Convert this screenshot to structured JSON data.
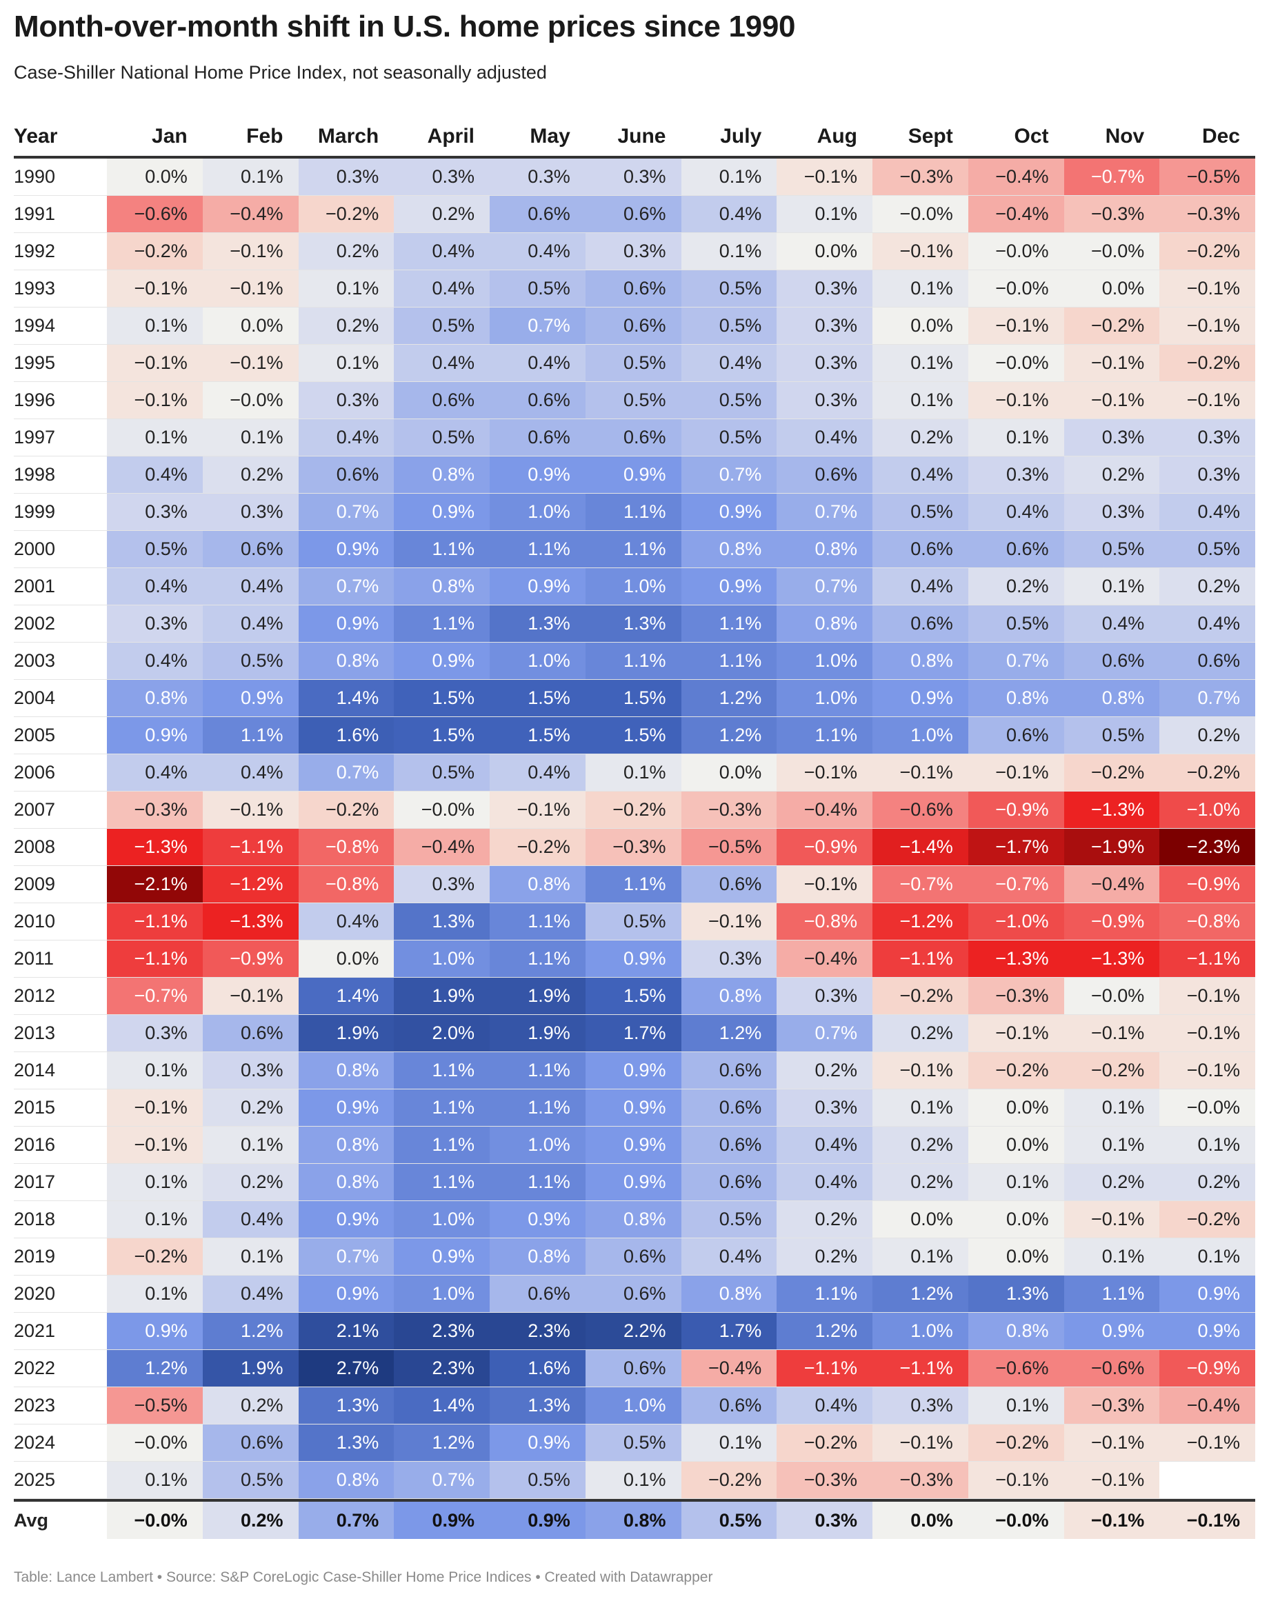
{
  "title": "Month-over-month shift in U.S. home prices since 1990",
  "subtitle": "Case-Shiller National Home Price Index, not seasonally adjusted",
  "footer": "Table: Lance Lambert • Source: S&P CoreLogic Case-Shiller Home Price Indices • Created with Datawrapper",
  "colors": {
    "negative_max": "#7f0000",
    "positive_max": "#1f3f7f",
    "neutral": "#f1f1ee"
  },
  "chart_data": {
    "type": "heatmap",
    "columns": [
      "Year",
      "Jan",
      "Feb",
      "March",
      "April",
      "May",
      "June",
      "July",
      "Aug",
      "Sept",
      "Oct",
      "Nov",
      "Dec"
    ],
    "unit": "%",
    "rows": [
      {
        "year": "1990",
        "values": [
          "0.0%",
          "0.1%",
          "0.3%",
          "0.3%",
          "0.3%",
          "0.3%",
          "0.1%",
          "−0.1%",
          "−0.3%",
          "−0.4%",
          "−0.7%",
          "−0.5%"
        ]
      },
      {
        "year": "1991",
        "values": [
          "−0.6%",
          "−0.4%",
          "−0.2%",
          "0.2%",
          "0.6%",
          "0.6%",
          "0.4%",
          "0.1%",
          "−0.0%",
          "−0.4%",
          "−0.3%",
          "−0.3%"
        ]
      },
      {
        "year": "1992",
        "values": [
          "−0.2%",
          "−0.1%",
          "0.2%",
          "0.4%",
          "0.4%",
          "0.3%",
          "0.1%",
          "0.0%",
          "−0.1%",
          "−0.0%",
          "−0.0%",
          "−0.2%"
        ]
      },
      {
        "year": "1993",
        "values": [
          "−0.1%",
          "−0.1%",
          "0.1%",
          "0.4%",
          "0.5%",
          "0.6%",
          "0.5%",
          "0.3%",
          "0.1%",
          "−0.0%",
          "0.0%",
          "−0.1%"
        ]
      },
      {
        "year": "1994",
        "values": [
          "0.1%",
          "0.0%",
          "0.2%",
          "0.5%",
          "0.7%",
          "0.6%",
          "0.5%",
          "0.3%",
          "0.0%",
          "−0.1%",
          "−0.2%",
          "−0.1%"
        ]
      },
      {
        "year": "1995",
        "values": [
          "−0.1%",
          "−0.1%",
          "0.1%",
          "0.4%",
          "0.4%",
          "0.5%",
          "0.4%",
          "0.3%",
          "0.1%",
          "−0.0%",
          "−0.1%",
          "−0.2%"
        ]
      },
      {
        "year": "1996",
        "values": [
          "−0.1%",
          "−0.0%",
          "0.3%",
          "0.6%",
          "0.6%",
          "0.5%",
          "0.5%",
          "0.3%",
          "0.1%",
          "−0.1%",
          "−0.1%",
          "−0.1%"
        ]
      },
      {
        "year": "1997",
        "values": [
          "0.1%",
          "0.1%",
          "0.4%",
          "0.5%",
          "0.6%",
          "0.6%",
          "0.5%",
          "0.4%",
          "0.2%",
          "0.1%",
          "0.3%",
          "0.3%"
        ]
      },
      {
        "year": "1998",
        "values": [
          "0.4%",
          "0.2%",
          "0.6%",
          "0.8%",
          "0.9%",
          "0.9%",
          "0.7%",
          "0.6%",
          "0.4%",
          "0.3%",
          "0.2%",
          "0.3%"
        ]
      },
      {
        "year": "1999",
        "values": [
          "0.3%",
          "0.3%",
          "0.7%",
          "0.9%",
          "1.0%",
          "1.1%",
          "0.9%",
          "0.7%",
          "0.5%",
          "0.4%",
          "0.3%",
          "0.4%"
        ]
      },
      {
        "year": "2000",
        "values": [
          "0.5%",
          "0.6%",
          "0.9%",
          "1.1%",
          "1.1%",
          "1.1%",
          "0.8%",
          "0.8%",
          "0.6%",
          "0.6%",
          "0.5%",
          "0.5%"
        ]
      },
      {
        "year": "2001",
        "values": [
          "0.4%",
          "0.4%",
          "0.7%",
          "0.8%",
          "0.9%",
          "1.0%",
          "0.9%",
          "0.7%",
          "0.4%",
          "0.2%",
          "0.1%",
          "0.2%"
        ]
      },
      {
        "year": "2002",
        "values": [
          "0.3%",
          "0.4%",
          "0.9%",
          "1.1%",
          "1.3%",
          "1.3%",
          "1.1%",
          "0.8%",
          "0.6%",
          "0.5%",
          "0.4%",
          "0.4%"
        ]
      },
      {
        "year": "2003",
        "values": [
          "0.4%",
          "0.5%",
          "0.8%",
          "0.9%",
          "1.0%",
          "1.1%",
          "1.1%",
          "1.0%",
          "0.8%",
          "0.7%",
          "0.6%",
          "0.6%"
        ]
      },
      {
        "year": "2004",
        "values": [
          "0.8%",
          "0.9%",
          "1.4%",
          "1.5%",
          "1.5%",
          "1.5%",
          "1.2%",
          "1.0%",
          "0.9%",
          "0.8%",
          "0.8%",
          "0.7%"
        ]
      },
      {
        "year": "2005",
        "values": [
          "0.9%",
          "1.1%",
          "1.6%",
          "1.5%",
          "1.5%",
          "1.5%",
          "1.2%",
          "1.1%",
          "1.0%",
          "0.6%",
          "0.5%",
          "0.2%"
        ]
      },
      {
        "year": "2006",
        "values": [
          "0.4%",
          "0.4%",
          "0.7%",
          "0.5%",
          "0.4%",
          "0.1%",
          "0.0%",
          "−0.1%",
          "−0.1%",
          "−0.1%",
          "−0.2%",
          "−0.2%"
        ]
      },
      {
        "year": "2007",
        "values": [
          "−0.3%",
          "−0.1%",
          "−0.2%",
          "−0.0%",
          "−0.1%",
          "−0.2%",
          "−0.3%",
          "−0.4%",
          "−0.6%",
          "−0.9%",
          "−1.3%",
          "−1.0%"
        ]
      },
      {
        "year": "2008",
        "values": [
          "−1.3%",
          "−1.1%",
          "−0.8%",
          "−0.4%",
          "−0.2%",
          "−0.3%",
          "−0.5%",
          "−0.9%",
          "−1.4%",
          "−1.7%",
          "−1.9%",
          "−2.3%"
        ]
      },
      {
        "year": "2009",
        "values": [
          "−2.1%",
          "−1.2%",
          "−0.8%",
          "0.3%",
          "0.8%",
          "1.1%",
          "0.6%",
          "−0.1%",
          "−0.7%",
          "−0.7%",
          "−0.4%",
          "−0.9%"
        ]
      },
      {
        "year": "2010",
        "values": [
          "−1.1%",
          "−1.3%",
          "0.4%",
          "1.3%",
          "1.1%",
          "0.5%",
          "−0.1%",
          "−0.8%",
          "−1.2%",
          "−1.0%",
          "−0.9%",
          "−0.8%"
        ]
      },
      {
        "year": "2011",
        "values": [
          "−1.1%",
          "−0.9%",
          "0.0%",
          "1.0%",
          "1.1%",
          "0.9%",
          "0.3%",
          "−0.4%",
          "−1.1%",
          "−1.3%",
          "−1.3%",
          "−1.1%"
        ]
      },
      {
        "year": "2012",
        "values": [
          "−0.7%",
          "−0.1%",
          "1.4%",
          "1.9%",
          "1.9%",
          "1.5%",
          "0.8%",
          "0.3%",
          "−0.2%",
          "−0.3%",
          "−0.0%",
          "−0.1%"
        ]
      },
      {
        "year": "2013",
        "values": [
          "0.3%",
          "0.6%",
          "1.9%",
          "2.0%",
          "1.9%",
          "1.7%",
          "1.2%",
          "0.7%",
          "0.2%",
          "−0.1%",
          "−0.1%",
          "−0.1%"
        ]
      },
      {
        "year": "2014",
        "values": [
          "0.1%",
          "0.3%",
          "0.8%",
          "1.1%",
          "1.1%",
          "0.9%",
          "0.6%",
          "0.2%",
          "−0.1%",
          "−0.2%",
          "−0.2%",
          "−0.1%"
        ]
      },
      {
        "year": "2015",
        "values": [
          "−0.1%",
          "0.2%",
          "0.9%",
          "1.1%",
          "1.1%",
          "0.9%",
          "0.6%",
          "0.3%",
          "0.1%",
          "0.0%",
          "0.1%",
          "−0.0%"
        ]
      },
      {
        "year": "2016",
        "values": [
          "−0.1%",
          "0.1%",
          "0.8%",
          "1.1%",
          "1.0%",
          "0.9%",
          "0.6%",
          "0.4%",
          "0.2%",
          "0.0%",
          "0.1%",
          "0.1%"
        ]
      },
      {
        "year": "2017",
        "values": [
          "0.1%",
          "0.2%",
          "0.8%",
          "1.1%",
          "1.1%",
          "0.9%",
          "0.6%",
          "0.4%",
          "0.2%",
          "0.1%",
          "0.2%",
          "0.2%"
        ]
      },
      {
        "year": "2018",
        "values": [
          "0.1%",
          "0.4%",
          "0.9%",
          "1.0%",
          "0.9%",
          "0.8%",
          "0.5%",
          "0.2%",
          "0.0%",
          "0.0%",
          "−0.1%",
          "−0.2%"
        ]
      },
      {
        "year": "2019",
        "values": [
          "−0.2%",
          "0.1%",
          "0.7%",
          "0.9%",
          "0.8%",
          "0.6%",
          "0.4%",
          "0.2%",
          "0.1%",
          "0.0%",
          "0.1%",
          "0.1%"
        ]
      },
      {
        "year": "2020",
        "values": [
          "0.1%",
          "0.4%",
          "0.9%",
          "1.0%",
          "0.6%",
          "0.6%",
          "0.8%",
          "1.1%",
          "1.2%",
          "1.3%",
          "1.1%",
          "0.9%"
        ]
      },
      {
        "year": "2021",
        "values": [
          "0.9%",
          "1.2%",
          "2.1%",
          "2.3%",
          "2.3%",
          "2.2%",
          "1.7%",
          "1.2%",
          "1.0%",
          "0.8%",
          "0.9%",
          "0.9%"
        ]
      },
      {
        "year": "2022",
        "values": [
          "1.2%",
          "1.9%",
          "2.7%",
          "2.3%",
          "1.6%",
          "0.6%",
          "−0.4%",
          "−1.1%",
          "−1.1%",
          "−0.6%",
          "−0.6%",
          "−0.9%"
        ]
      },
      {
        "year": "2023",
        "values": [
          "−0.5%",
          "0.2%",
          "1.3%",
          "1.4%",
          "1.3%",
          "1.0%",
          "0.6%",
          "0.4%",
          "0.3%",
          "0.1%",
          "−0.3%",
          "−0.4%"
        ]
      },
      {
        "year": "2024",
        "values": [
          "−0.0%",
          "0.6%",
          "1.3%",
          "1.2%",
          "0.9%",
          "0.5%",
          "0.1%",
          "−0.2%",
          "−0.1%",
          "−0.2%",
          "−0.1%",
          "−0.1%"
        ]
      },
      {
        "year": "2025",
        "values": [
          "0.1%",
          "0.5%",
          "0.8%",
          "0.7%",
          "0.5%",
          "0.1%",
          "−0.2%",
          "−0.3%",
          "−0.3%",
          "−0.1%",
          "−0.1%",
          ""
        ]
      }
    ],
    "avg": {
      "label": "Avg",
      "values": [
        "−0.0%",
        "0.2%",
        "0.7%",
        "0.9%",
        "0.9%",
        "0.8%",
        "0.5%",
        "0.3%",
        "0.0%",
        "−0.0%",
        "−0.1%",
        "−0.1%"
      ]
    }
  }
}
